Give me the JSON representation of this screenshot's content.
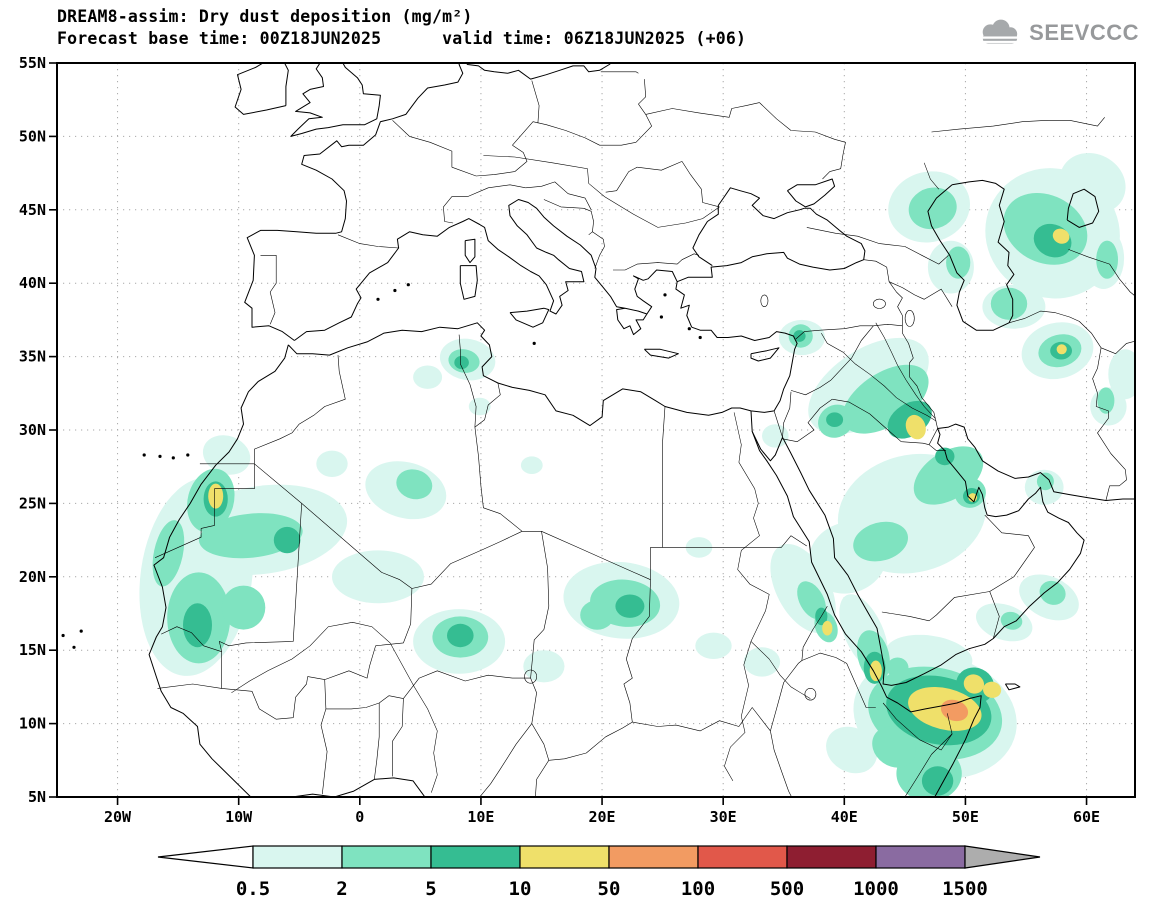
{
  "header": {
    "title": "DREAM8-assim: Dry dust deposition (mg/m²)",
    "subtitle": "Forecast base time: 00Z18JUN2025      valid time: 06Z18JUN2025 (+06)",
    "logo_text": "SEEVCCC"
  },
  "colorbar": {
    "labels": [
      "0.5",
      "2",
      "5",
      "10",
      "50",
      "100",
      "500",
      "1000",
      "1500"
    ]
  },
  "chart_data": {
    "type": "heatmap",
    "subtype": "filled-contour-geographic-map",
    "title": "DREAM8-assim: Dry dust deposition (mg/m²)",
    "variable": "Dry dust deposition",
    "units": "mg/m²",
    "model": "DREAM8-assim",
    "forecast_base_time": "00Z18JUN2025",
    "valid_time": "06Z18JUN2025",
    "forecast_hour": "+06",
    "lon_range": [
      -25,
      64
    ],
    "lat_range": [
      5,
      55
    ],
    "grid": "dotted",
    "legend_position": "bottom",
    "x_ticks": [
      {
        "lon": -20,
        "label": "20W"
      },
      {
        "lon": -10,
        "label": "10W"
      },
      {
        "lon": 0,
        "label": "0"
      },
      {
        "lon": 10,
        "label": "10E"
      },
      {
        "lon": 20,
        "label": "20E"
      },
      {
        "lon": 30,
        "label": "30E"
      },
      {
        "lon": 40,
        "label": "40E"
      },
      {
        "lon": 50,
        "label": "50E"
      },
      {
        "lon": 60,
        "label": "60E"
      }
    ],
    "y_ticks": [
      {
        "lat": 55,
        "label": "55N"
      },
      {
        "lat": 50,
        "label": "50N"
      },
      {
        "lat": 45,
        "label": "45N"
      },
      {
        "lat": 40,
        "label": "40N"
      },
      {
        "lat": 35,
        "label": "35N"
      },
      {
        "lat": 30,
        "label": "30N"
      },
      {
        "lat": 25,
        "label": "25N"
      },
      {
        "lat": 20,
        "label": "20N"
      },
      {
        "lat": 15,
        "label": "15N"
      },
      {
        "lat": 10,
        "label": "10N"
      },
      {
        "lat": 5,
        "label": "5N"
      }
    ],
    "levels": [
      0.5,
      2,
      5,
      10,
      50,
      100,
      500,
      1000,
      1500
    ],
    "palette": {
      "under": "#ffffff",
      "0.5": "#d9f6ef",
      "2": "#7fe3c0",
      "5": "#35bd92",
      "10": "#efe06a",
      "50": "#f29b62",
      "100": "#e1584a",
      "500": "#8e1e31",
      "1000": "#8a6ba1",
      "over": "#adadad"
    },
    "deposition_areas_format": [
      "lon_deg",
      "lat_deg",
      "rx_deg",
      "ry_deg",
      "rotation_deg",
      "level_mg_m2"
    ],
    "deposition_areas": [
      [
        -13.5,
        20.0,
        4.6,
        6.8,
        8,
        0.5
      ],
      [
        -8.0,
        23.2,
        7.0,
        3.0,
        -8,
        0.5
      ],
      [
        -11.0,
        28.3,
        2.0,
        1.3,
        20,
        0.5
      ],
      [
        1.5,
        20.0,
        3.8,
        1.8,
        0,
        0.5
      ],
      [
        3.8,
        25.9,
        3.4,
        1.9,
        15,
        0.5
      ],
      [
        8.2,
        15.6,
        3.8,
        2.2,
        0,
        0.5
      ],
      [
        15.2,
        13.9,
        1.7,
        1.1,
        0,
        0.5
      ],
      [
        21.6,
        18.4,
        4.8,
        2.6,
        6,
        0.5
      ],
      [
        28.0,
        22.0,
        1.1,
        0.7,
        0,
        0.5
      ],
      [
        29.2,
        15.3,
        1.5,
        0.9,
        0,
        0.5
      ],
      [
        33.2,
        14.2,
        1.5,
        1.0,
        0,
        0.5
      ],
      [
        8.9,
        34.8,
        2.3,
        1.4,
        10,
        0.5
      ],
      [
        5.6,
        33.6,
        1.2,
        0.8,
        0,
        0.5
      ],
      [
        9.9,
        31.6,
        0.9,
        0.6,
        0,
        0.5
      ],
      [
        14.2,
        27.6,
        0.9,
        0.6,
        0,
        0.5
      ],
      [
        -2.3,
        27.7,
        1.3,
        0.9,
        0,
        0.5
      ],
      [
        36.6,
        19.2,
        2.2,
        3.3,
        -28,
        0.5
      ],
      [
        41.6,
        16.2,
        1.6,
        2.8,
        -24,
        0.5
      ],
      [
        42.0,
        33.0,
        5.6,
        2.5,
        -33,
        0.5
      ],
      [
        45.6,
        24.3,
        6.2,
        4.0,
        -14,
        0.5
      ],
      [
        40.3,
        21.3,
        3.3,
        2.4,
        -22,
        0.5
      ],
      [
        47.0,
        14.6,
        3.6,
        1.4,
        8,
        0.5
      ],
      [
        53.2,
        16.9,
        2.4,
        1.2,
        18,
        0.5
      ],
      [
        56.9,
        18.6,
        2.6,
        1.4,
        25,
        0.5
      ],
      [
        56.5,
        26.1,
        1.6,
        1.2,
        0,
        0.5
      ],
      [
        47.5,
        10.5,
        6.8,
        4.2,
        12,
        0.5
      ],
      [
        40.6,
        8.2,
        2.2,
        1.5,
        30,
        0.5
      ],
      [
        57.2,
        43.4,
        5.6,
        4.4,
        24,
        0.5
      ],
      [
        60.5,
        46.8,
        2.8,
        2.0,
        28,
        0.5
      ],
      [
        47.0,
        45.2,
        3.4,
        2.4,
        -14,
        0.5
      ],
      [
        48.8,
        41.1,
        1.9,
        1.8,
        0,
        0.5
      ],
      [
        54.0,
        38.4,
        2.6,
        1.5,
        0,
        0.5
      ],
      [
        57.6,
        35.4,
        3.0,
        1.9,
        -14,
        0.5
      ],
      [
        63.2,
        33.8,
        1.4,
        1.7,
        0,
        0.5
      ],
      [
        61.4,
        41.7,
        1.7,
        2.1,
        0,
        0.5
      ],
      [
        61.8,
        31.6,
        1.5,
        1.3,
        0,
        0.5
      ],
      [
        36.5,
        36.3,
        1.9,
        1.2,
        0,
        0.5
      ],
      [
        34.3,
        29.6,
        1.1,
        0.8,
        0,
        0.5
      ],
      [
        -13.3,
        17.2,
        2.6,
        3.1,
        0,
        2
      ],
      [
        -15.8,
        21.6,
        1.2,
        2.3,
        12,
        2
      ],
      [
        -12.3,
        25.2,
        1.9,
        2.2,
        15,
        2
      ],
      [
        -9.0,
        22.8,
        4.3,
        1.5,
        -6,
        2
      ],
      [
        -9.6,
        17.9,
        1.8,
        1.5,
        0,
        2
      ],
      [
        4.5,
        26.3,
        1.5,
        1.0,
        15,
        2
      ],
      [
        8.3,
        15.9,
        2.3,
        1.4,
        0,
        2
      ],
      [
        21.9,
        18.2,
        2.9,
        1.6,
        6,
        2
      ],
      [
        19.6,
        17.4,
        1.4,
        1.0,
        0,
        2
      ],
      [
        8.6,
        34.7,
        1.3,
        0.8,
        10,
        2
      ],
      [
        37.3,
        18.4,
        1.0,
        1.4,
        -28,
        2
      ],
      [
        38.5,
        16.6,
        0.9,
        1.1,
        -20,
        2
      ],
      [
        43.4,
        32.1,
        4.0,
        1.8,
        -33,
        2
      ],
      [
        36.4,
        36.4,
        1.0,
        0.8,
        0,
        2
      ],
      [
        39.3,
        30.6,
        1.5,
        1.1,
        -28,
        2
      ],
      [
        48.6,
        26.9,
        3.2,
        1.6,
        -34,
        2
      ],
      [
        43.0,
        22.4,
        2.3,
        1.3,
        -15,
        2
      ],
      [
        50.4,
        25.7,
        1.3,
        1.0,
        -20,
        2
      ],
      [
        42.4,
        14.6,
        1.3,
        1.8,
        -14,
        2
      ],
      [
        44.4,
        13.8,
        0.9,
        0.7,
        0,
        2
      ],
      [
        57.2,
        18.9,
        1.1,
        0.8,
        25,
        2
      ],
      [
        53.8,
        17.0,
        0.9,
        0.6,
        15,
        2
      ],
      [
        56.6,
        26.5,
        0.7,
        0.6,
        0,
        2
      ],
      [
        47.5,
        10.7,
        5.6,
        3.1,
        12,
        2
      ],
      [
        47.0,
        6.6,
        2.7,
        1.9,
        0,
        2
      ],
      [
        44.1,
        8.4,
        1.9,
        1.3,
        35,
        2
      ],
      [
        56.6,
        43.7,
        3.6,
        2.3,
        26,
        2
      ],
      [
        47.3,
        45.1,
        2.0,
        1.4,
        -14,
        2
      ],
      [
        49.4,
        41.4,
        1.0,
        1.1,
        0,
        2
      ],
      [
        53.6,
        38.6,
        1.5,
        1.1,
        0,
        2
      ],
      [
        57.8,
        35.4,
        1.8,
        1.1,
        -14,
        2
      ],
      [
        61.7,
        41.6,
        0.9,
        1.3,
        0,
        2
      ],
      [
        61.6,
        32.0,
        0.7,
        0.9,
        0,
        2
      ],
      [
        -13.4,
        16.7,
        1.2,
        1.5,
        0,
        5
      ],
      [
        -11.9,
        25.3,
        1.0,
        1.2,
        0,
        5
      ],
      [
        -6.0,
        22.5,
        1.1,
        0.9,
        0,
        5
      ],
      [
        8.3,
        16.0,
        1.1,
        0.8,
        0,
        5
      ],
      [
        22.3,
        18.0,
        1.2,
        0.8,
        0,
        5
      ],
      [
        8.4,
        34.6,
        0.6,
        0.45,
        0,
        5
      ],
      [
        38.1,
        17.3,
        0.5,
        0.6,
        0,
        5
      ],
      [
        45.4,
        30.7,
        2.0,
        1.1,
        -33,
        5
      ],
      [
        36.3,
        36.4,
        0.5,
        0.4,
        0,
        5
      ],
      [
        39.2,
        30.7,
        0.7,
        0.5,
        0,
        5
      ],
      [
        48.3,
        28.2,
        0.8,
        0.6,
        0,
        5
      ],
      [
        50.5,
        25.5,
        0.7,
        0.55,
        -20,
        5
      ],
      [
        42.5,
        13.8,
        0.9,
        1.1,
        0,
        5
      ],
      [
        47.8,
        10.9,
        4.4,
        2.3,
        12,
        5
      ],
      [
        47.7,
        6.1,
        1.3,
        1.0,
        0,
        5
      ],
      [
        57.2,
        42.9,
        1.6,
        1.1,
        25,
        5
      ],
      [
        57.9,
        35.4,
        0.9,
        0.6,
        0,
        5
      ],
      [
        50.8,
        12.6,
        1.6,
        1.2,
        25,
        5
      ],
      [
        -11.9,
        25.5,
        0.62,
        0.85,
        0,
        10
      ],
      [
        38.6,
        16.5,
        0.42,
        0.5,
        0,
        10
      ],
      [
        45.9,
        30.2,
        0.8,
        0.85,
        -20,
        10
      ],
      [
        50.6,
        25.4,
        0.36,
        0.3,
        0,
        10
      ],
      [
        42.6,
        13.6,
        0.5,
        0.7,
        0,
        10
      ],
      [
        48.3,
        11.0,
        3.1,
        1.4,
        14,
        10
      ],
      [
        50.7,
        12.7,
        0.85,
        0.65,
        25,
        10
      ],
      [
        52.2,
        12.3,
        0.75,
        0.55,
        10,
        10
      ],
      [
        57.9,
        43.2,
        0.7,
        0.5,
        25,
        10
      ],
      [
        57.95,
        35.5,
        0.42,
        0.34,
        0,
        10
      ],
      [
        49.1,
        10.9,
        1.15,
        0.7,
        18,
        50
      ]
    ]
  }
}
